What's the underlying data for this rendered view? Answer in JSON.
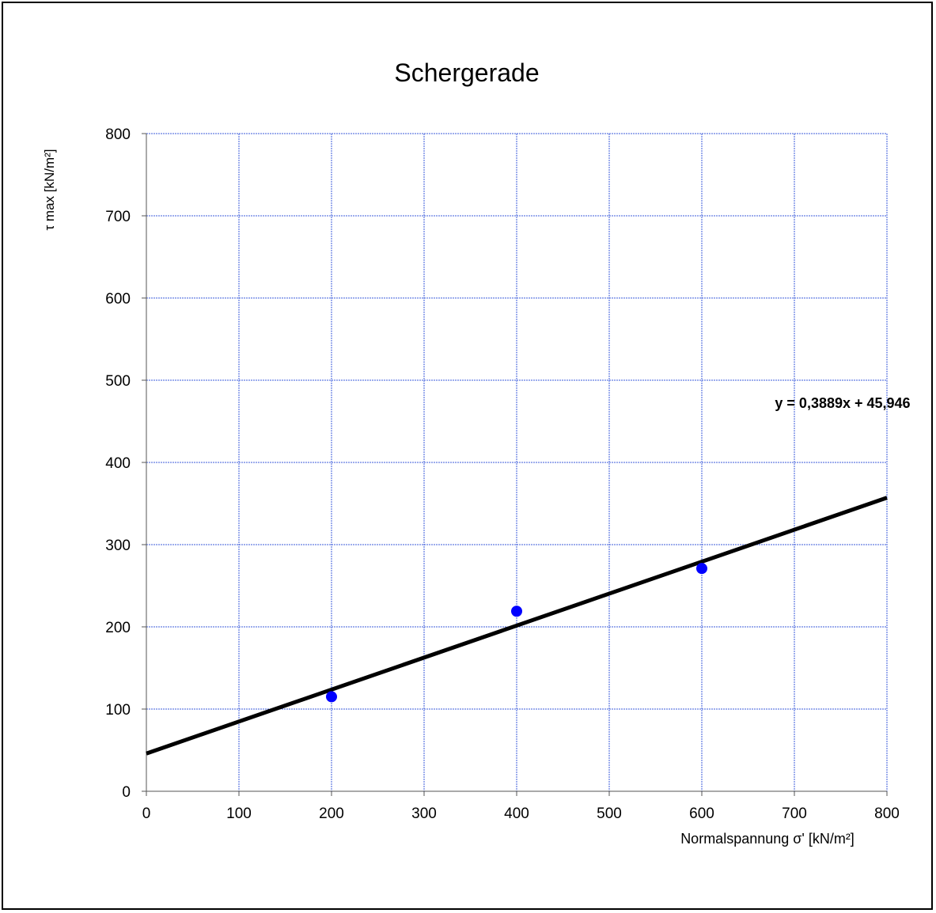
{
  "chart_data": {
    "type": "scatter",
    "title": "Schergerade",
    "xlabel": "Normalspannung σ' [kN/m²]",
    "ylabel": "τ max [kN/m²]",
    "xlim": [
      0,
      800
    ],
    "ylim": [
      0,
      800
    ],
    "x_ticks": [
      "0",
      "100",
      "200",
      "300",
      "400",
      "500",
      "600",
      "700",
      "800"
    ],
    "y_ticks": [
      "0",
      "100",
      "200",
      "300",
      "400",
      "500",
      "600",
      "700",
      "800"
    ],
    "grid": true,
    "series": [
      {
        "x": [
          200,
          400,
          600
        ],
        "y": [
          115,
          219,
          271
        ],
        "color": "#0000ff"
      }
    ],
    "trendline": {
      "slope": 0.3889,
      "intercept": 45.946,
      "label": "y = 0,3889x + 45,946",
      "color": "#000000"
    },
    "grid_color": "#3b5bdb"
  }
}
